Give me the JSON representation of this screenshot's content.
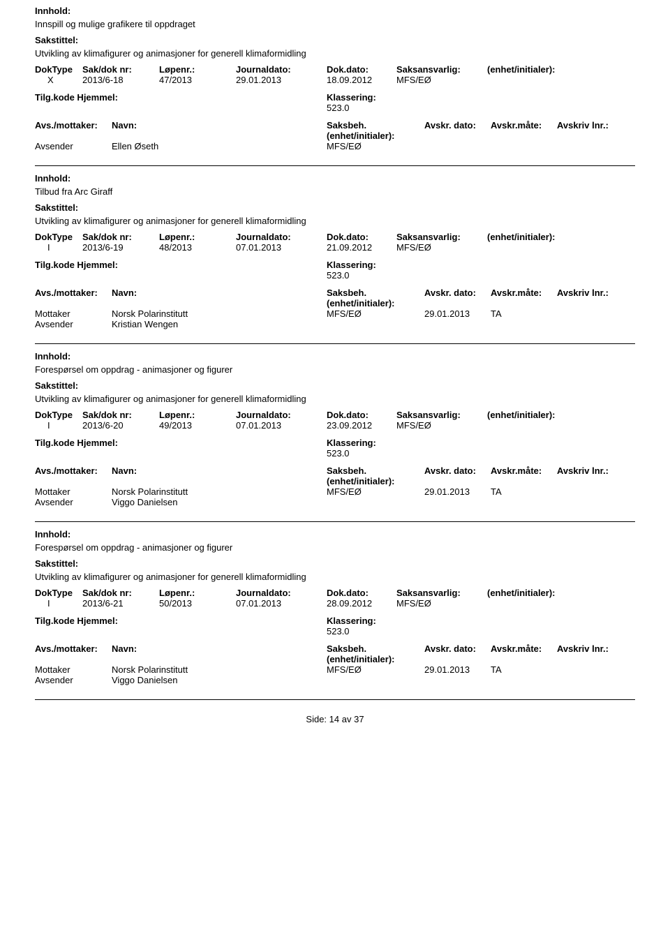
{
  "labels": {
    "innhold": "Innhold:",
    "sakstittel": "Sakstittel:",
    "doktype": "DokType",
    "sakdok": "Sak/dok nr:",
    "lopenr": "Løpenr.:",
    "jdato": "Journaldato:",
    "ddato": "Dok.dato:",
    "saksans": "Saksansvarlig:",
    "enhet": "(enhet/initialer):",
    "tilgkode": "Tilg.kode",
    "hjemmel": "Hjemmel:",
    "klassering": "Klassering:",
    "avsmot": "Avs./mottaker:",
    "navn": "Navn:",
    "saksbeh": "Saksbeh.",
    "avskrdato": "Avskr. dato:",
    "avskrmate": "Avskr.måte:",
    "avskrlnr": "Avskriv lnr.:"
  },
  "entries": [
    {
      "innhold": "Innspill og mulige grafikere til oppdraget",
      "sakstittel": "Utvikling av klimafigurer og animasjoner for generell klimaformidling",
      "doktype": "X",
      "sakdok": "2013/6-18",
      "lopenr": "47/2013",
      "jdato": "29.01.2013",
      "ddato": "18.09.2012",
      "saksans": "MFS/EØ",
      "klass": "523.0",
      "parter": [
        {
          "role": "Avsender",
          "navn": "Ellen Øseth",
          "saksbeh": "MFS/EØ",
          "avskrdato": "",
          "avskrmate": ""
        }
      ]
    },
    {
      "innhold": "Tilbud fra Arc Giraff",
      "sakstittel": "Utvikling av klimafigurer og animasjoner for generell klimaformidling",
      "doktype": "I",
      "sakdok": "2013/6-19",
      "lopenr": "48/2013",
      "jdato": "07.01.2013",
      "ddato": "21.09.2012",
      "saksans": "MFS/EØ",
      "klass": "523.0",
      "parter": [
        {
          "role": "Mottaker",
          "navn": "Norsk Polarinstitutt",
          "saksbeh": "MFS/EØ",
          "avskrdato": "29.01.2013",
          "avskrmate": "TA"
        },
        {
          "role": "Avsender",
          "navn": "Kristian Wengen",
          "saksbeh": "",
          "avskrdato": "",
          "avskrmate": ""
        }
      ]
    },
    {
      "innhold": "Forespørsel om oppdrag - animasjoner og figurer",
      "sakstittel": "Utvikling av klimafigurer og animasjoner for generell klimaformidling",
      "doktype": "I",
      "sakdok": "2013/6-20",
      "lopenr": "49/2013",
      "jdato": "07.01.2013",
      "ddato": "23.09.2012",
      "saksans": "MFS/EØ",
      "klass": "523.0",
      "parter": [
        {
          "role": "Mottaker",
          "navn": "Norsk Polarinstitutt",
          "saksbeh": "MFS/EØ",
          "avskrdato": "29.01.2013",
          "avskrmate": "TA"
        },
        {
          "role": "Avsender",
          "navn": "Viggo Danielsen",
          "saksbeh": "",
          "avskrdato": "",
          "avskrmate": ""
        }
      ]
    },
    {
      "innhold": "Forespørsel om oppdrag - animasjoner og figurer",
      "sakstittel": "Utvikling av klimafigurer og animasjoner for generell klimaformidling",
      "doktype": "I",
      "sakdok": "2013/6-21",
      "lopenr": "50/2013",
      "jdato": "07.01.2013",
      "ddato": "28.09.2012",
      "saksans": "MFS/EØ",
      "klass": "523.0",
      "parter": [
        {
          "role": "Mottaker",
          "navn": "Norsk Polarinstitutt",
          "saksbeh": "MFS/EØ",
          "avskrdato": "29.01.2013",
          "avskrmate": "TA"
        },
        {
          "role": "Avsender",
          "navn": "Viggo Danielsen",
          "saksbeh": "",
          "avskrdato": "",
          "avskrmate": ""
        }
      ]
    }
  ],
  "footer": {
    "side_label": "Side:",
    "page": "14",
    "av": "av",
    "total": "37"
  }
}
